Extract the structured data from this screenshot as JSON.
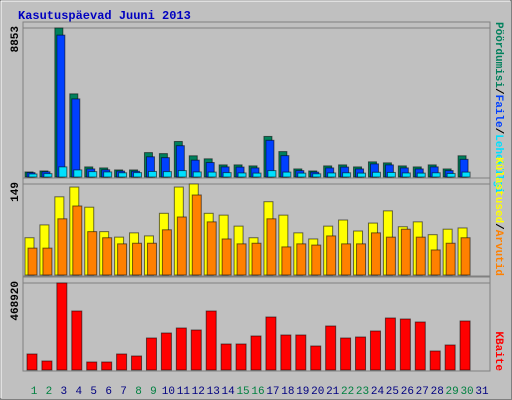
{
  "title": "Kasutuspäevad Juuni 2013",
  "separator": "/",
  "chart_data": [
    {
      "type": "bar",
      "ylim": [
        0,
        8853
      ],
      "yticks": [
        8853
      ],
      "series": [
        {
          "name": "Pöördumisi",
          "color": "#00805c",
          "values": [
            300,
            360,
            8853,
            4940,
            600,
            540,
            420,
            420,
            1450,
            1390,
            2110,
            1260,
            1080,
            720,
            720,
            660,
            2410,
            1510,
            480,
            360,
            660,
            720,
            600,
            900,
            840,
            660,
            600,
            720,
            480,
            1260,
            null
          ]
        },
        {
          "name": "Faile",
          "color": "#0040ff",
          "values": [
            260,
            310,
            8430,
            4640,
            480,
            430,
            350,
            340,
            1200,
            1150,
            1860,
            1000,
            860,
            600,
            590,
            540,
            2180,
            1270,
            380,
            290,
            540,
            590,
            480,
            780,
            720,
            540,
            480,
            600,
            380,
            1050,
            null
          ]
        },
        {
          "name": "Lehekülgi",
          "color": "#00e0ff",
          "values": [
            180,
            200,
            600,
            420,
            320,
            300,
            250,
            260,
            330,
            320,
            380,
            300,
            290,
            260,
            240,
            230,
            380,
            290,
            230,
            190,
            240,
            250,
            230,
            280,
            270,
            240,
            230,
            250,
            210,
            290,
            null
          ]
        }
      ]
    },
    {
      "type": "bar",
      "ylim": [
        0,
        149
      ],
      "yticks": [
        149
      ],
      "series": [
        {
          "name": "Külastused",
          "color": "#ffff00",
          "values": [
            61,
            82,
            128,
            144,
            111,
            71,
            62,
            69,
            64,
            101,
            144,
            149,
            101,
            98,
            80,
            61,
            120,
            98,
            69,
            59,
            80,
            90,
            72,
            85,
            105,
            79,
            87,
            66,
            75,
            77,
            null
          ]
        },
        {
          "name": "Arvutid",
          "color": "#ff8000",
          "values": [
            44,
            44,
            92,
            113,
            71,
            61,
            51,
            52,
            52,
            74,
            95,
            131,
            87,
            59,
            51,
            52,
            92,
            46,
            51,
            49,
            64,
            51,
            51,
            69,
            62,
            75,
            62,
            41,
            52,
            61,
            null
          ]
        }
      ]
    },
    {
      "type": "bar",
      "ylim": [
        0,
        468920
      ],
      "yticks": [
        468920
      ],
      "categories": [
        "1",
        "2",
        "3",
        "4",
        "5",
        "6",
        "7",
        "8",
        "9",
        "10",
        "11",
        "12",
        "13",
        "14",
        "15",
        "16",
        "17",
        "18",
        "19",
        "20",
        "21",
        "22",
        "23",
        "24",
        "25",
        "26",
        "27",
        "28",
        "29",
        "30",
        "31"
      ],
      "category_colors": [
        "#008040",
        "#008040",
        "#000080",
        "#000080",
        "#000080",
        "#000080",
        "#000080",
        "#008040",
        "#008040",
        "#000080",
        "#000080",
        "#000080",
        "#000080",
        "#000080",
        "#008040",
        "#008040",
        "#000080",
        "#000080",
        "#000080",
        "#000080",
        "#000080",
        "#008040",
        "#008040",
        "#000080",
        "#000080",
        "#000080",
        "#000080",
        "#000080",
        "#008040",
        "#008040",
        "#000080"
      ],
      "series": [
        {
          "name": "KBaite",
          "color": "#ff0000",
          "values": [
            86240,
            48510,
            468920,
            318000,
            43120,
            43120,
            86240,
            75460,
            172480,
            199420,
            226380,
            215600,
            318000,
            140140,
            140140,
            183260,
            285660,
            188650,
            188650,
            129360,
            237160,
            172480,
            177870,
            210210,
            280280,
            274890,
            258720,
            102410,
            134750,
            264110,
            null
          ]
        }
      ]
    }
  ]
}
